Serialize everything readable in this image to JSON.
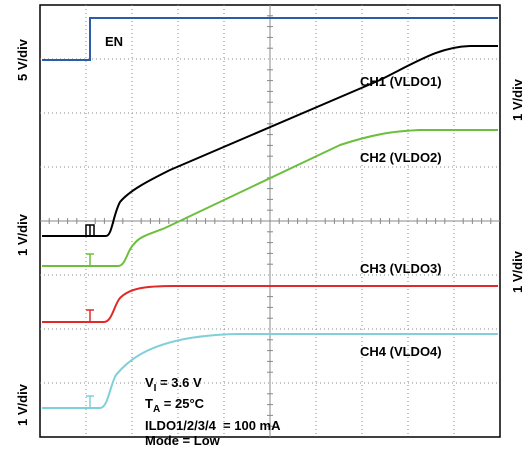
{
  "signals": [
    {
      "label": "EN"
    },
    {
      "label": "CH1 (VLDO1)"
    },
    {
      "label": "CH2 (VLDO2)"
    },
    {
      "label": "CH3 (VLDO3)"
    },
    {
      "label": "CH4 (VLDO4)"
    }
  ],
  "left_scales": [
    "5 V/div",
    "1 V/div",
    "1 V/div"
  ],
  "right_scales": [
    "1 V/div",
    "1 V/div"
  ],
  "conditions": [
    {
      "symbol": "V",
      "subscript": "I",
      "rest": " = 3.6 V"
    },
    {
      "symbol": "T",
      "subscript": "A",
      "rest": " = 25°C"
    },
    {
      "text": "ILDO1/2/3/4  = 100 mA"
    },
    {
      "text": "Mode = Low"
    }
  ]
}
